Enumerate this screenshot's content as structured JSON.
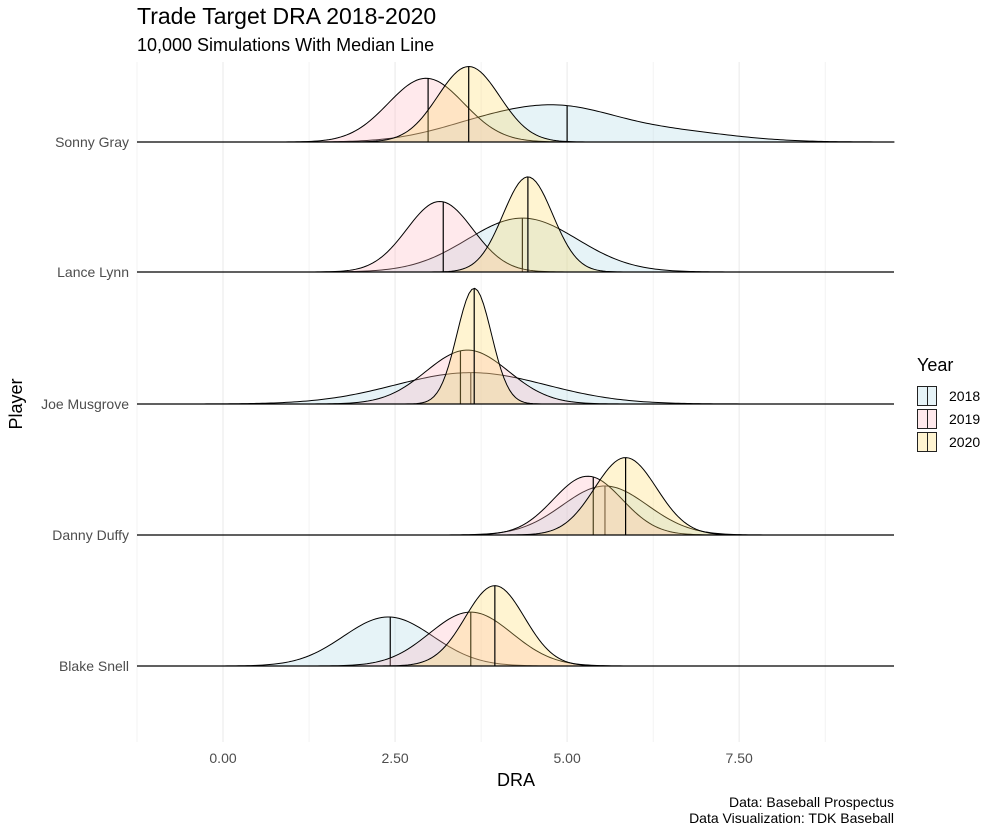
{
  "chart_data": {
    "type": "ridgeline-density",
    "title": "Trade Target DRA 2018-2020",
    "subtitle": "10,000 Simulations With Median Line",
    "xlabel": "DRA",
    "ylabel": "Player",
    "xlim": [
      -1.25,
      9.75
    ],
    "x_ticks": [
      0,
      2.5,
      5,
      7.5
    ],
    "x_tick_labels": [
      "0.00",
      "2.50",
      "5.00",
      "7.50"
    ],
    "grid": true,
    "legend": {
      "title": "Year",
      "placement": "right"
    },
    "caption": [
      "Data: Baseball Prospectus",
      "Data Visualization: TDK Baseball"
    ],
    "colors": {
      "2018": "#add8e6",
      "2019": "#ffb6c1",
      "2020": "#ffd966"
    },
    "players": [
      "Sonny Gray",
      "Lance Lynn",
      "Joe Musgrove",
      "Danny Duffy",
      "Blake Snell"
    ],
    "series": [
      {
        "name": "2018",
        "player": "Sonny Gray",
        "median": 5.0,
        "components": [
          {
            "mu": 3.9,
            "sd": 0.8,
            "w": 0.35
          },
          {
            "mu": 5.0,
            "sd": 0.75,
            "w": 0.45
          },
          {
            "mu": 6.4,
            "sd": 0.95,
            "w": 0.2
          }
        ],
        "height": 0.38
      },
      {
        "name": "2019",
        "player": "Sonny Gray",
        "median": 2.98,
        "components": [
          {
            "mu": 2.95,
            "sd": 0.55,
            "w": 1.0
          }
        ],
        "height": 0.65
      },
      {
        "name": "2020",
        "player": "Sonny Gray",
        "median": 3.57,
        "components": [
          {
            "mu": 3.57,
            "sd": 0.45,
            "w": 1.0
          }
        ],
        "height": 0.77
      },
      {
        "name": "2018",
        "player": "Lance Lynn",
        "median": 4.35,
        "components": [
          {
            "mu": 4.35,
            "sd": 0.8,
            "w": 1.0
          }
        ],
        "height": 0.55
      },
      {
        "name": "2019",
        "player": "Lance Lynn",
        "median": 3.2,
        "components": [
          {
            "mu": 3.15,
            "sd": 0.48,
            "w": 1.0
          }
        ],
        "height": 0.72
      },
      {
        "name": "2020",
        "player": "Lance Lynn",
        "median": 4.43,
        "components": [
          {
            "mu": 4.43,
            "sd": 0.36,
            "w": 1.0
          }
        ],
        "height": 0.97
      },
      {
        "name": "2018",
        "player": "Joe Musgrove",
        "median": 3.6,
        "components": [
          {
            "mu": 3.6,
            "sd": 1.1,
            "w": 1.0
          }
        ],
        "height": 0.32
      },
      {
        "name": "2019",
        "player": "Joe Musgrove",
        "median": 3.45,
        "components": [
          {
            "mu": 3.55,
            "sd": 0.6,
            "w": 1.0
          }
        ],
        "height": 0.55
      },
      {
        "name": "2020",
        "player": "Joe Musgrove",
        "median": 3.65,
        "components": [
          {
            "mu": 3.65,
            "sd": 0.25,
            "w": 1.0
          }
        ],
        "height": 1.18
      },
      {
        "name": "2018",
        "player": "Danny Duffy",
        "median": 5.55,
        "components": [
          {
            "mu": 5.55,
            "sd": 0.62,
            "w": 1.0
          }
        ],
        "height": 0.5
      },
      {
        "name": "2019",
        "player": "Danny Duffy",
        "median": 5.38,
        "components": [
          {
            "mu": 5.3,
            "sd": 0.5,
            "w": 1.0
          }
        ],
        "height": 0.6
      },
      {
        "name": "2020",
        "player": "Danny Duffy",
        "median": 5.85,
        "components": [
          {
            "mu": 5.85,
            "sd": 0.45,
            "w": 1.0
          }
        ],
        "height": 0.79
      },
      {
        "name": "2018",
        "player": "Blake Snell",
        "median": 2.43,
        "components": [
          {
            "mu": 2.4,
            "sd": 0.65,
            "w": 1.0
          }
        ],
        "height": 0.5
      },
      {
        "name": "2019",
        "player": "Blake Snell",
        "median": 3.6,
        "components": [
          {
            "mu": 3.6,
            "sd": 0.6,
            "w": 1.0
          }
        ],
        "height": 0.55
      },
      {
        "name": "2020",
        "player": "Blake Snell",
        "median": 3.95,
        "components": [
          {
            "mu": 3.95,
            "sd": 0.43,
            "w": 1.0
          }
        ],
        "height": 0.82
      }
    ]
  }
}
